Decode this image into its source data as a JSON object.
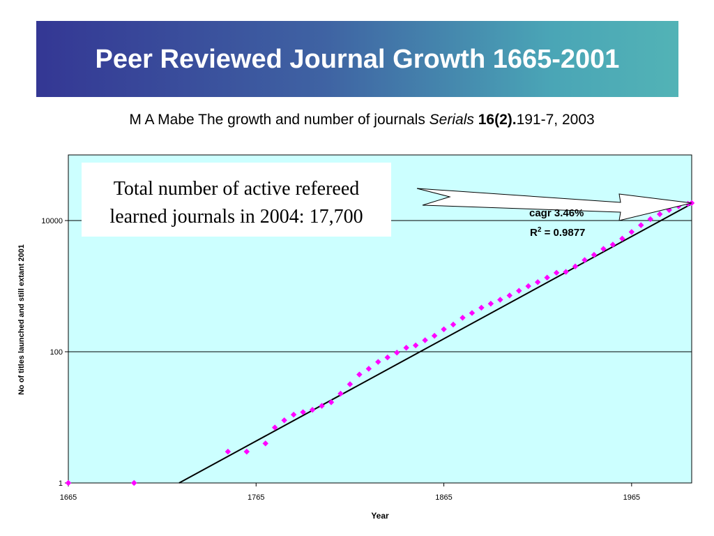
{
  "slide": {
    "title": "Peer Reviewed Journal Growth 1665-2001",
    "citation": {
      "authors_and_title": "M A Mabe The growth and number of journals ",
      "journal": "Serials",
      "volume": "16(2).",
      "pages_year": "191-7, 2003"
    },
    "callout": {
      "line1": "Total number of active refereed",
      "line2": "learned journals in 2004: 17,700"
    },
    "arrow_color": "#ffffff",
    "title_gradient": [
      "#343794",
      "#52b3b6"
    ]
  },
  "chart_data": {
    "type": "scatter",
    "xlabel": "Year",
    "ylabel": "No of titles launched and still extant 2001",
    "xlim": [
      1665,
      1997
    ],
    "ylim": [
      1,
      100000
    ],
    "yscale": "log",
    "x_ticks": [
      "1665",
      "1765",
      "1865",
      "1965"
    ],
    "y_ticks": [
      "1",
      "100",
      "10000"
    ],
    "grid": "horizontal",
    "plot_bg": "#ccffff",
    "marker_color": "#ff00ff",
    "trend_color": "#000000",
    "annotations": [
      "cagr 3.46%",
      "R",
      "2",
      " = 0.9877"
    ],
    "series": [
      {
        "type": "points",
        "x": [
          1665,
          1700,
          1750,
          1760,
          1770,
          1775,
          1780,
          1785,
          1790,
          1795,
          1800,
          1805,
          1810,
          1815,
          1820,
          1825,
          1830,
          1835,
          1840,
          1845,
          1850,
          1855,
          1860,
          1865,
          1870,
          1875,
          1880,
          1885,
          1890,
          1895,
          1900,
          1905,
          1910,
          1915,
          1920,
          1925,
          1930,
          1935,
          1940,
          1945,
          1950,
          1955,
          1960,
          1965,
          1970,
          1975,
          1980,
          1985,
          1990,
          1995,
          1997
        ],
        "y": [
          1,
          1,
          3,
          3,
          4,
          7,
          9,
          11,
          12,
          13,
          15,
          17,
          23,
          32,
          45,
          55,
          70,
          82,
          97,
          115,
          125,
          150,
          175,
          220,
          260,
          330,
          390,
          470,
          540,
          620,
          720,
          850,
          1000,
          1150,
          1350,
          1600,
          1650,
          2000,
          2500,
          3000,
          3700,
          4300,
          5300,
          6700,
          8500,
          10500,
          12500,
          14500,
          16500,
          18000,
          18500
        ]
      },
      {
        "type": "trend",
        "x": [
          1724,
          1997
        ],
        "y": [
          1,
          18000
        ]
      }
    ]
  }
}
